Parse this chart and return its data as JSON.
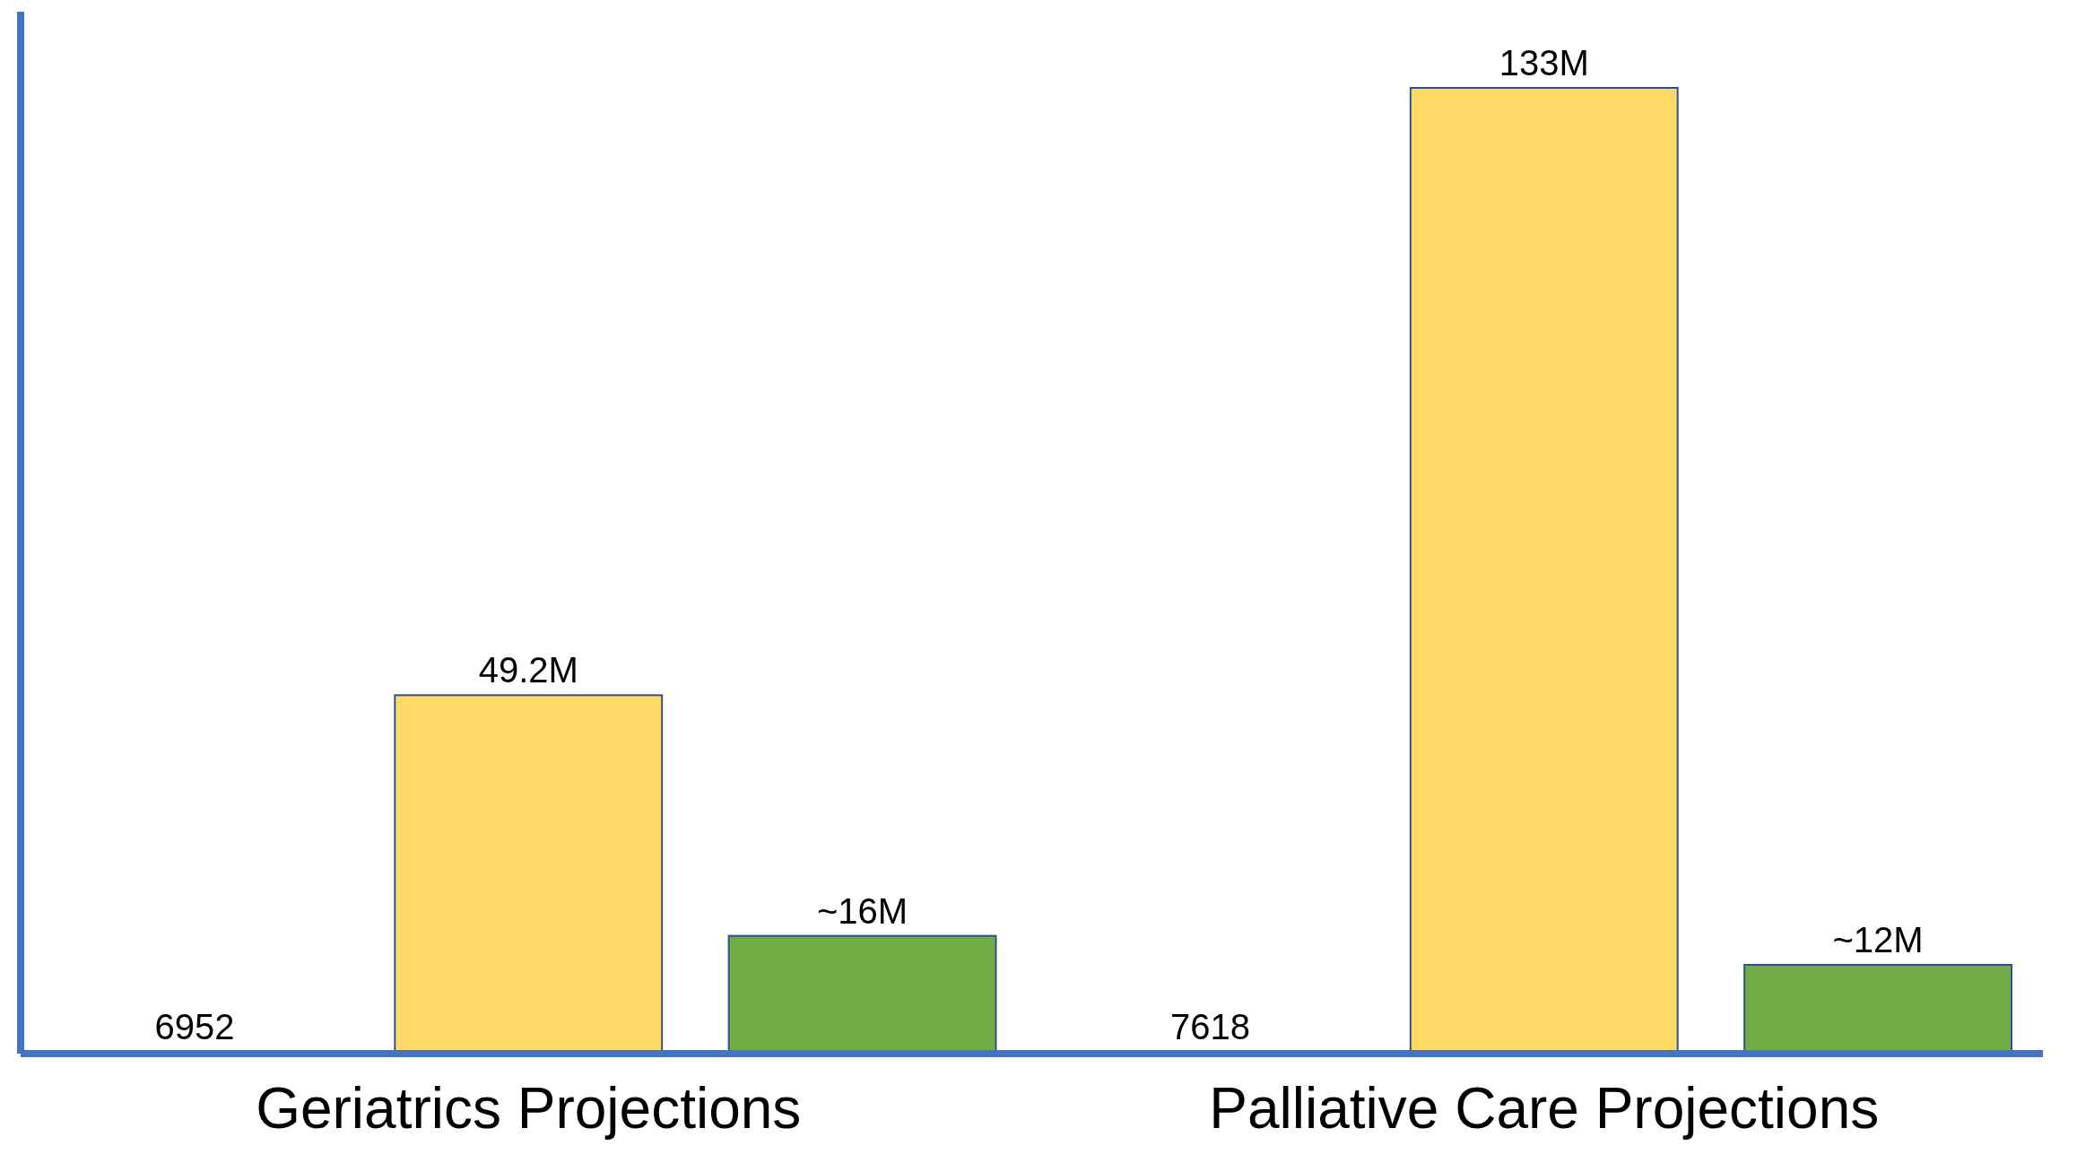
{
  "chart_data": {
    "type": "bar",
    "categories": [
      "Geriatrics Projections",
      "Palliative Care Projections"
    ],
    "series": [
      {
        "color": "#4472c4",
        "values": [
          6952,
          7618
        ],
        "value_labels": [
          "6952",
          "7618"
        ]
      },
      {
        "color": "#ffd966",
        "values": [
          49200000,
          133000000
        ],
        "value_labels": [
          "49.2M",
          "133M"
        ]
      },
      {
        "color": "#70ad47",
        "values": [
          16000000,
          12000000
        ],
        "value_labels": [
          "~16M",
          "~12M"
        ]
      }
    ],
    "tick_labels": false
  }
}
